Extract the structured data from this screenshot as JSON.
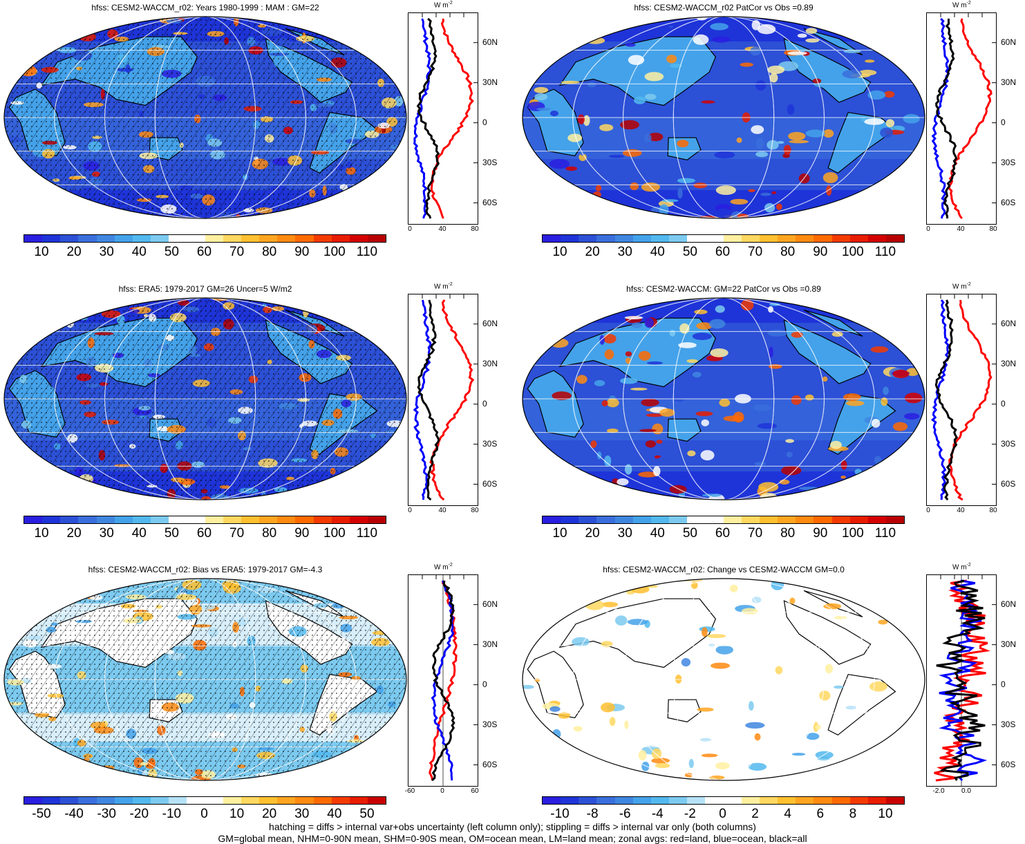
{
  "panels": [
    {
      "title": "hfss: CESM2-WACCM_r02: Years 1980-1999 : MAM : GM=22",
      "palette": "abs",
      "cb_labels": [
        "10",
        "20",
        "30",
        "40",
        "50",
        "60",
        "70",
        "80",
        "90",
        "100",
        "110"
      ],
      "z_ticks": [
        "0",
        "40",
        "80"
      ],
      "hatched": true,
      "stippled": true
    },
    {
      "title": "hfss: CESM2-WACCM_r02 PatCor vs Obs =0.89",
      "palette": "abs",
      "cb_labels": [
        "10",
        "20",
        "30",
        "40",
        "50",
        "60",
        "70",
        "80",
        "90",
        "100",
        "110"
      ],
      "z_ticks": [
        "0",
        "40",
        "80"
      ],
      "hatched": false,
      "stippled": false
    },
    {
      "title": "hfss: ERA5: 1979-2017 GM=26 Uncer=5 W/m2",
      "palette": "abs",
      "cb_labels": [
        "10",
        "20",
        "30",
        "40",
        "50",
        "60",
        "70",
        "80",
        "90",
        "100",
        "110"
      ],
      "z_ticks": [
        "0",
        "40",
        "80"
      ],
      "hatched": true,
      "stippled": true
    },
    {
      "title": "hfss: CESM2-WACCM: GM=22 PatCor vs Obs =0.89",
      "palette": "abs",
      "cb_labels": [
        "10",
        "20",
        "30",
        "40",
        "50",
        "60",
        "70",
        "80",
        "90",
        "100",
        "110"
      ],
      "z_ticks": [
        "0",
        "40",
        "80"
      ],
      "hatched": false,
      "stippled": false
    },
    {
      "title": "hfss: CESM2-WACCM_r02: Bias vs ERA5: 1979-2017 GM=-4.3",
      "palette": "bias",
      "cb_labels": [
        "-50",
        "-40",
        "-30",
        "-20",
        "-10",
        "0",
        "10",
        "20",
        "30",
        "40",
        "50"
      ],
      "z_ticks": [
        "-60",
        "0",
        "60"
      ],
      "hatched": true,
      "stippled": true
    },
    {
      "title": "hfss: CESM2-WACCM_r02: Change vs CESM2-WACCM GM=0.0",
      "palette": "change",
      "cb_labels": [
        "-10",
        "-8",
        "-6",
        "-4",
        "-2",
        "0",
        "2",
        "4",
        "6",
        "8",
        "10"
      ],
      "z_ticks": [
        "-2.0",
        "0.0"
      ],
      "hatched": false,
      "stippled": false
    }
  ],
  "lat_labels": [
    "60N",
    "30N",
    "0",
    "30S",
    "60S"
  ],
  "zonal_unit": "W m",
  "zonal_unit_sup": "-2",
  "colors": {
    "abs": [
      "#2a1ee0",
      "#1e34d8",
      "#2c50d6",
      "#3a6edc",
      "#3f86e0",
      "#44a2ea",
      "#52b8ee",
      "#7ccaf0",
      "#ffffff",
      "#ffffff",
      "#fff0a0",
      "#ffd860",
      "#ffc030",
      "#ffa520",
      "#ff8a10",
      "#ff6a00",
      "#f43a00",
      "#e81c00",
      "#d40000",
      "#b80000"
    ],
    "bias": [
      "#2a1ee0",
      "#1e34d8",
      "#2c50d6",
      "#3a6edc",
      "#3f86e0",
      "#44a2ea",
      "#52b8ee",
      "#7ccaf0",
      "#b6e2f8",
      "#ffffff",
      "#ffffff",
      "#fff0a0",
      "#ffd860",
      "#ffc030",
      "#ffa520",
      "#ff8a10",
      "#ff6a00",
      "#f43a00",
      "#e81c00",
      "#c80000"
    ],
    "change": [
      "#2a1ee0",
      "#1e34d8",
      "#2c50d6",
      "#3a6edc",
      "#3f86e0",
      "#44a2ea",
      "#52b8ee",
      "#7ccaf0",
      "#b6e2f8",
      "#ffffff",
      "#ffffff",
      "#fff0a0",
      "#ffd860",
      "#ffc030",
      "#ffa520",
      "#ff8a10",
      "#ff6a00",
      "#f43a00",
      "#e81c00",
      "#c80000"
    ],
    "land_line": "#ff0000",
    "ocean_line": "#0000ff",
    "all_line": "#000000"
  },
  "footer": {
    "line1": "hatching = diffs > internal var+obs uncertainty (left column only); stippling = diffs > internal var only (both columns)",
    "line2": "GM=global mean, NHM=0-90N mean, SHM=0-90S mean, OM=ocean mean, LM=land mean; zonal avgs: red=land, blue=ocean, black=all"
  }
}
